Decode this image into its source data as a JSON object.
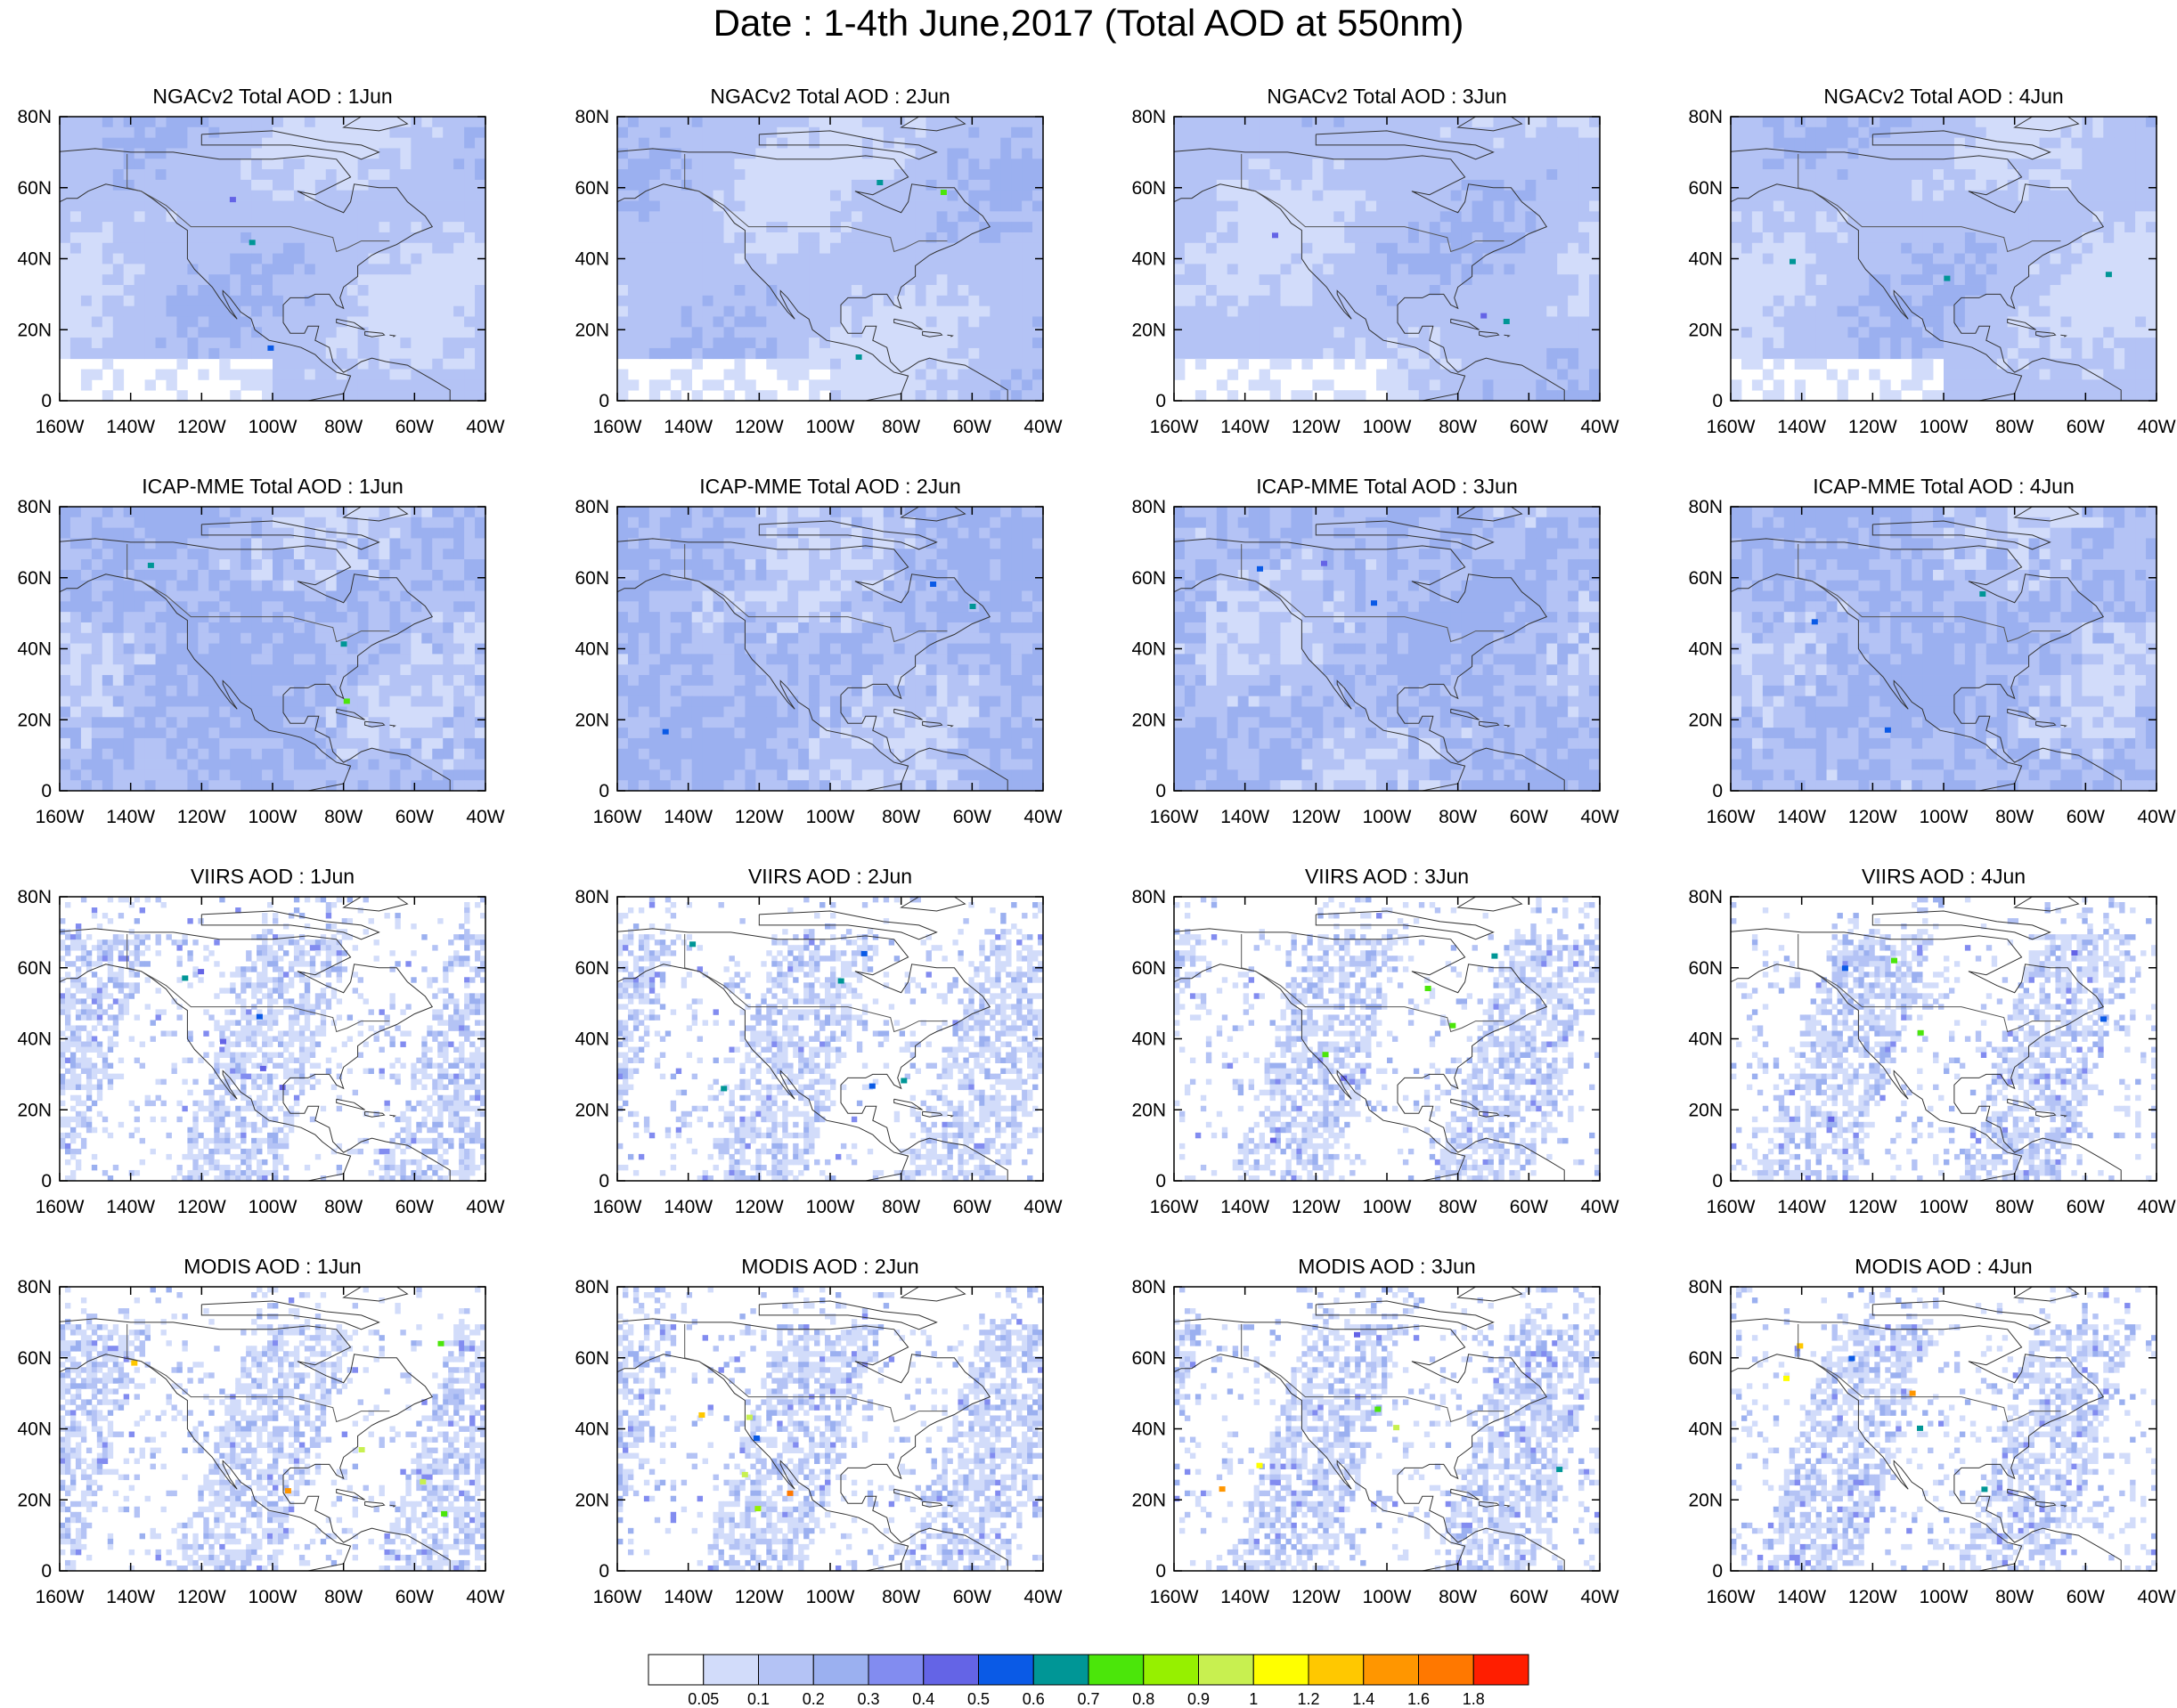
{
  "title": "Date : 1-4th June,2017 (Total AOD at 550nm)",
  "rows": [
    {
      "model": "NGACv2",
      "panels": [
        "NGACv2 Total AOD : 1Jun",
        "NGACv2 Total AOD : 2Jun",
        "NGACv2 Total AOD : 3Jun",
        "NGACv2 Total AOD : 4Jun"
      ],
      "type": "model"
    },
    {
      "model": "ICAP-MME",
      "panels": [
        "ICAP-MME Total AOD : 1Jun",
        "ICAP-MME Total AOD : 2Jun",
        "ICAP-MME Total AOD : 3Jun",
        "ICAP-MME Total AOD : 4Jun"
      ],
      "type": "model"
    },
    {
      "model": "VIIRS",
      "panels": [
        "VIIRS AOD : 1Jun",
        "VIIRS AOD : 2Jun",
        "VIIRS AOD : 3Jun",
        "VIIRS AOD : 4Jun"
      ],
      "type": "satellite"
    },
    {
      "model": "MODIS",
      "panels": [
        "MODIS AOD : 1Jun",
        "MODIS AOD : 2Jun",
        "MODIS AOD : 3Jun",
        "MODIS AOD : 4Jun"
      ],
      "type": "satellite"
    }
  ],
  "lat_ticks": [
    "80N",
    "60N",
    "40N",
    "20N",
    "0"
  ],
  "lon_ticks": [
    "160W",
    "140W",
    "120W",
    "100W",
    "80W",
    "60W",
    "40W"
  ],
  "colorbar": {
    "labels": [
      "0.05",
      "0.1",
      "0.2",
      "0.3",
      "0.4",
      "0.5",
      "0.6",
      "0.7",
      "0.8",
      "0.9",
      "1",
      "1.2",
      "1.4",
      "1.6",
      "1.8"
    ],
    "colors": [
      "#ffffff",
      "#d2dcfa",
      "#b4c3f5",
      "#9bb0f0",
      "#828cf0",
      "#6464e6",
      "#0a5ae6",
      "#009696",
      "#4be60a",
      "#96f000",
      "#c8f050",
      "#ffff00",
      "#ffc800",
      "#ff9600",
      "#ff7800",
      "#ff1e00"
    ]
  }
}
